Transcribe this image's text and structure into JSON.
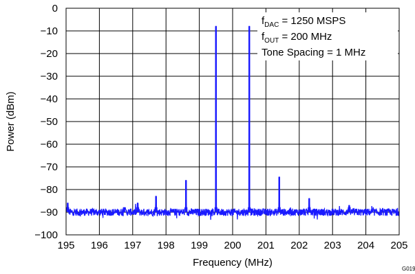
{
  "chart_data": {
    "type": "line",
    "title": "",
    "xlabel": "Frequency (MHz)",
    "ylabel": "Power (dBm)",
    "xlim": [
      195,
      205
    ],
    "ylim": [
      -100,
      0
    ],
    "x_ticks": [
      "195",
      "196",
      "197",
      "198",
      "199",
      "200",
      "201",
      "202",
      "203",
      "204",
      "205"
    ],
    "y_ticks": [
      "0",
      "−10",
      "−20",
      "−30",
      "−40",
      "−50",
      "−60",
      "−70",
      "−80",
      "−90",
      "−100"
    ],
    "grid": true,
    "legend_position": "top-right",
    "legend": [
      {
        "main": "f",
        "sub": "DAC",
        "rest": " = 1250 MSPS"
      },
      {
        "main": "f",
        "sub": "OUT",
        "rest": " = 200 MHz"
      },
      {
        "main": "Tone Spacing = 1 MHz",
        "sub": "",
        "rest": ""
      }
    ],
    "figure_id": "G019",
    "series": [
      {
        "color": "#1a1aff",
        "noise_floor": -90,
        "peaks": [
          {
            "x": 195.05,
            "y": -86
          },
          {
            "x": 196.75,
            "y": -88
          },
          {
            "x": 197.15,
            "y": -86
          },
          {
            "x": 197.7,
            "y": -83
          },
          {
            "x": 198.6,
            "y": -76
          },
          {
            "x": 199.5,
            "y": -8
          },
          {
            "x": 200.5,
            "y": -8
          },
          {
            "x": 201.4,
            "y": -74.5
          },
          {
            "x": 202.3,
            "y": -84
          },
          {
            "x": 203.5,
            "y": -87
          }
        ]
      }
    ]
  }
}
